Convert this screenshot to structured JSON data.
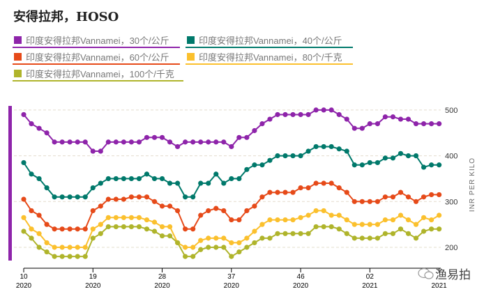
{
  "title": "安得拉邦，HOSO",
  "chart_data": {
    "type": "line",
    "title": "安得拉邦，HOSO",
    "ylabel": "INR PER KILO",
    "xlabel": "",
    "ylim": [
      200,
      500
    ],
    "yticks": [
      200,
      300,
      400,
      500
    ],
    "grid": true,
    "legend_position": "top",
    "point_count": 55,
    "xticks": [
      {
        "index": 0,
        "week": "10",
        "year": "2020"
      },
      {
        "index": 9,
        "week": "19",
        "year": "2020"
      },
      {
        "index": 18,
        "week": "28",
        "year": "2020"
      },
      {
        "index": 27,
        "week": "37",
        "year": "2020"
      },
      {
        "index": 36,
        "week": "46",
        "year": "2020"
      },
      {
        "index": 45,
        "week": "02",
        "year": "2021"
      },
      {
        "index": 54,
        "week": "",
        "year": "2021"
      }
    ],
    "series": [
      {
        "name": "印度安得拉邦Vannamei，30个/公斤",
        "color": "#8e24aa",
        "values": [
          490,
          470,
          460,
          450,
          430,
          430,
          430,
          430,
          430,
          410,
          410,
          430,
          430,
          430,
          430,
          430,
          440,
          440,
          440,
          430,
          420,
          430,
          430,
          430,
          430,
          430,
          430,
          420,
          440,
          440,
          455,
          470,
          480,
          490,
          490,
          490,
          490,
          490,
          500,
          500,
          500,
          490,
          480,
          460,
          460,
          470,
          470,
          485,
          485,
          480,
          480,
          470,
          470,
          470,
          470
        ]
      },
      {
        "name": "印度安得拉邦Vannamei，40个/公斤",
        "color": "#00796b",
        "values": [
          385,
          360,
          350,
          330,
          310,
          310,
          310,
          310,
          310,
          330,
          340,
          350,
          350,
          350,
          350,
          350,
          360,
          350,
          350,
          340,
          340,
          310,
          310,
          340,
          340,
          360,
          340,
          350,
          350,
          370,
          380,
          380,
          390,
          400,
          400,
          400,
          400,
          410,
          420,
          420,
          420,
          415,
          410,
          380,
          380,
          385,
          385,
          395,
          395,
          405,
          400,
          400,
          375,
          380,
          380
        ]
      },
      {
        "name": "印度安得拉邦Vannamei，60个/公斤",
        "color": "#e64a19",
        "values": [
          305,
          280,
          270,
          250,
          240,
          240,
          240,
          240,
          240,
          280,
          290,
          305,
          305,
          305,
          310,
          310,
          310,
          300,
          290,
          290,
          280,
          240,
          240,
          270,
          280,
          285,
          280,
          260,
          260,
          280,
          290,
          310,
          320,
          320,
          320,
          320,
          330,
          330,
          340,
          340,
          340,
          330,
          320,
          300,
          300,
          300,
          300,
          310,
          310,
          320,
          310,
          300,
          310,
          315,
          315
        ]
      },
      {
        "name": "印度安得拉邦Vannamei，80个/千克",
        "color": "#fbc02d",
        "values": [
          265,
          240,
          230,
          210,
          200,
          200,
          200,
          200,
          200,
          240,
          250,
          265,
          265,
          265,
          265,
          265,
          260,
          255,
          245,
          245,
          210,
          200,
          200,
          215,
          220,
          220,
          220,
          210,
          210,
          220,
          235,
          250,
          260,
          260,
          260,
          260,
          265,
          270,
          280,
          280,
          270,
          270,
          260,
          250,
          250,
          250,
          250,
          260,
          260,
          270,
          260,
          250,
          265,
          260,
          270
        ]
      },
      {
        "name": "印度安得拉邦Vannamei，100个/千克",
        "color": "#afb42b",
        "values": [
          235,
          220,
          200,
          190,
          180,
          180,
          180,
          180,
          180,
          220,
          230,
          245,
          245,
          245,
          245,
          245,
          240,
          235,
          225,
          225,
          210,
          180,
          180,
          195,
          200,
          200,
          200,
          180,
          190,
          200,
          210,
          220,
          220,
          230,
          230,
          230,
          230,
          230,
          245,
          245,
          245,
          240,
          230,
          220,
          220,
          220,
          220,
          230,
          230,
          240,
          230,
          220,
          235,
          240,
          240
        ]
      }
    ]
  },
  "accent_bar_color": "#8e24aa",
  "watermark": "渔易拍"
}
